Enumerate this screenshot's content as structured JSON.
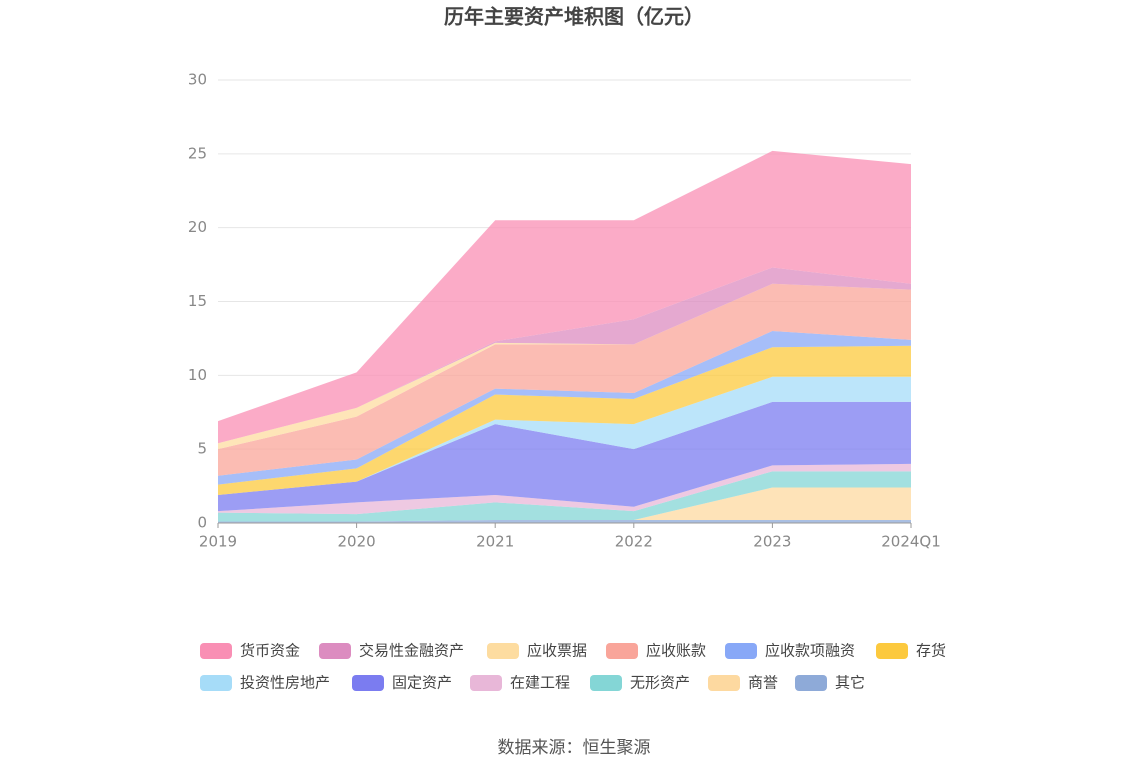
{
  "chart_data": {
    "type": "stacked-area",
    "title": "历年主要资产堆积图（亿元）",
    "source": "数据来源：恒生聚源",
    "categories": [
      "2019",
      "2020",
      "2021",
      "2022",
      "2023",
      "2024Q1"
    ],
    "ylim": [
      0,
      30
    ],
    "yticks": [
      0,
      5,
      10,
      15,
      20,
      25,
      30
    ],
    "grid": true,
    "series": [
      {
        "name": "货币资金",
        "color": "#f98fb4",
        "values": [
          1.5,
          2.4,
          8.2,
          6.7,
          7.9,
          8.1
        ]
      },
      {
        "name": "交易性金融资产",
        "color": "#dc8cc0",
        "values": [
          0,
          0,
          0.1,
          1.7,
          1.1,
          0.4
        ]
      },
      {
        "name": "应收票据",
        "color": "#fddca0",
        "values": [
          0.4,
          0.6,
          0.1,
          0,
          0,
          0
        ]
      },
      {
        "name": "应收账款",
        "color": "#f9a59a",
        "values": [
          1.8,
          2.9,
          3.0,
          3.3,
          3.2,
          3.4
        ]
      },
      {
        "name": "应收款项融资",
        "color": "#88a8f7",
        "values": [
          0.6,
          0.6,
          0.4,
          0.4,
          1.1,
          0.4
        ]
      },
      {
        "name": "存货",
        "color": "#fcc93e",
        "values": [
          0.7,
          0.9,
          1.7,
          1.7,
          2.0,
          2.1
        ]
      },
      {
        "name": "投资性房地产",
        "color": "#a6dcf8",
        "values": [
          0,
          0,
          0.3,
          1.7,
          1.7,
          1.7
        ]
      },
      {
        "name": "固定资产",
        "color": "#7b7cf0",
        "values": [
          1.1,
          1.4,
          4.8,
          3.9,
          4.3,
          4.2
        ]
      },
      {
        "name": "在建工程",
        "color": "#e8b7d8",
        "values": [
          0.1,
          0.8,
          0.5,
          0.3,
          0.4,
          0.5
        ]
      },
      {
        "name": "无形资产",
        "color": "#84d6d6",
        "values": [
          0.6,
          0.5,
          1.2,
          0.6,
          1.1,
          1.1
        ]
      },
      {
        "name": "商誉",
        "color": "#fdd9a0",
        "values": [
          0,
          0,
          0,
          0,
          2.2,
          2.2
        ]
      },
      {
        "name": "其它",
        "color": "#8eaad8",
        "values": [
          0.1,
          0.1,
          0.2,
          0.2,
          0.2,
          0.2
        ]
      }
    ]
  }
}
